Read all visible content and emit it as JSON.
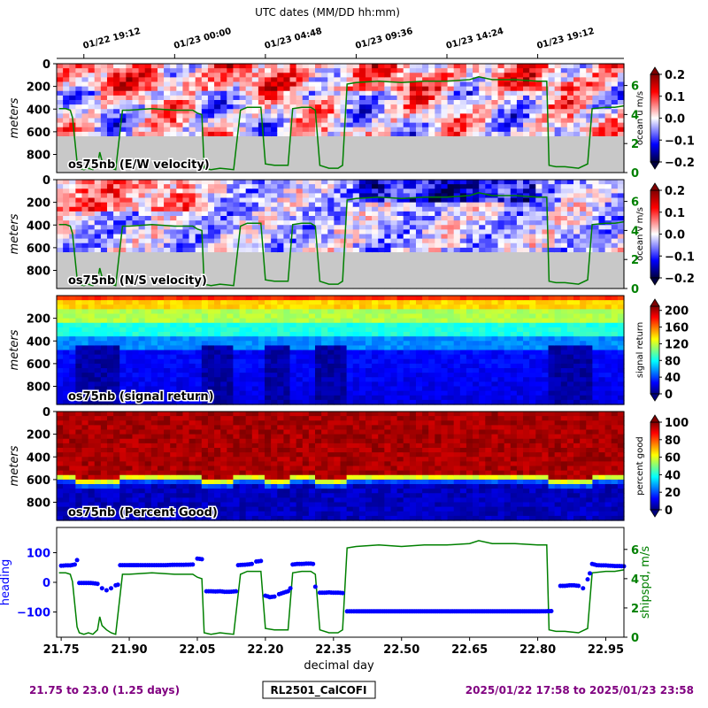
{
  "top_axis": {
    "title": "UTC dates (MM/DD hh:mm)",
    "ticks": [
      {
        "dday": 21.8,
        "label": "01/22 19:12"
      },
      {
        "dday": 22.0,
        "label": "01/23 00:00"
      },
      {
        "dday": 22.2,
        "label": "01/23 04:48"
      },
      {
        "dday": 22.4,
        "label": "01/23 09:36"
      },
      {
        "dday": 22.6,
        "label": "01/23 14:24"
      },
      {
        "dday": 22.8,
        "label": "01/23 19:12"
      }
    ]
  },
  "bottom_axis": {
    "label": "decimal day",
    "ticks": [
      "21.75",
      "21.90",
      "22.05",
      "22.20",
      "22.35",
      "22.50",
      "22.65",
      "22.80",
      "22.95"
    ]
  },
  "footer": {
    "range_text": "21.75 to 23.0 (1.25 days)",
    "cruise": "RL2501_CalCOFI",
    "time_text": "2025/01/22 17:58 to 2025/01/23 23:58",
    "color": "#800080"
  },
  "chart_data": [
    {
      "type": "heatmap",
      "title": "os75nb (E/W velocity)",
      "ylabel": "meters",
      "yticks": [
        "0",
        "200",
        "400",
        "600",
        "800"
      ],
      "ylim": [
        960,
        0
      ],
      "xlim": [
        21.74,
        22.99
      ],
      "colorbar": {
        "label": "ocean u m/s",
        "ticks": [
          "0.2",
          "0.1",
          "0.0",
          "−0.1",
          "−0.2"
        ],
        "range": [
          -0.2,
          0.2
        ],
        "colormap": "seismic"
      },
      "overlay": {
        "name": "shipspd",
        "color": "#008000",
        "axis_ticks": [
          "6",
          "4",
          "2",
          "0"
        ],
        "ylim": [
          0,
          7.5
        ]
      },
      "no_data_below_m": 620
    },
    {
      "type": "heatmap",
      "title": "os75nb (N/S velocity)",
      "ylabel": "meters",
      "yticks": [
        "0",
        "200",
        "400",
        "600",
        "800"
      ],
      "ylim": [
        960,
        0
      ],
      "xlim": [
        21.74,
        22.99
      ],
      "colorbar": {
        "label": "ocean v m/s",
        "ticks": [
          "0.2",
          "0.1",
          "0.0",
          "−0.1",
          "−0.2"
        ],
        "range": [
          -0.2,
          0.2
        ],
        "colormap": "seismic"
      },
      "overlay": {
        "name": "shipspd",
        "color": "#008000",
        "axis_ticks": [
          "6",
          "4",
          "2",
          "0"
        ],
        "ylim": [
          0,
          7.5
        ]
      },
      "no_data_below_m": 620
    },
    {
      "type": "heatmap",
      "title": "os75nb (signal return)",
      "ylabel": "meters",
      "yticks": [
        "200",
        "400",
        "600",
        "800"
      ],
      "ylim": [
        960,
        0
      ],
      "xlim": [
        21.74,
        22.99
      ],
      "colorbar": {
        "label": "signal return",
        "ticks": [
          "200",
          "160",
          "120",
          "80",
          "40",
          "0"
        ],
        "range": [
          0,
          210
        ],
        "colormap": "jet"
      }
    },
    {
      "type": "heatmap",
      "title": "os75nb (Percent Good)",
      "ylabel": "meters",
      "yticks": [
        "0",
        "200",
        "400",
        "600",
        "800"
      ],
      "ylim": [
        960,
        0
      ],
      "xlim": [
        21.74,
        22.99
      ],
      "colorbar": {
        "label": "percent good",
        "ticks": [
          "100",
          "80",
          "60",
          "40",
          "20",
          "0"
        ],
        "range": [
          0,
          100
        ],
        "colormap": "jet"
      }
    },
    {
      "type": "scatter",
      "xlabel": "decimal day",
      "xlim": [
        21.74,
        22.99
      ],
      "series": [
        {
          "name": "heading",
          "color": "#0000ff",
          "axis_ticks": [
            "100",
            "0",
            "−100"
          ],
          "ylim": [
            -185,
            185
          ],
          "points": [
            [
              21.75,
              56
            ],
            [
              21.76,
              57
            ],
            [
              21.77,
              57
            ],
            [
              21.78,
              60
            ],
            [
              21.785,
              75
            ],
            [
              21.79,
              -2
            ],
            [
              21.8,
              -2
            ],
            [
              21.81,
              -2
            ],
            [
              21.82,
              -3
            ],
            [
              21.83,
              -5
            ],
            [
              21.84,
              -20
            ],
            [
              21.85,
              -27
            ],
            [
              21.86,
              -20
            ],
            [
              21.87,
              -10
            ],
            [
              21.875,
              -8
            ],
            [
              21.88,
              58
            ],
            [
              21.9,
              58
            ],
            [
              21.92,
              58
            ],
            [
              21.94,
              58
            ],
            [
              21.96,
              58
            ],
            [
              21.98,
              58
            ],
            [
              22.0,
              59
            ],
            [
              22.02,
              59
            ],
            [
              22.04,
              60
            ],
            [
              22.05,
              80
            ],
            [
              22.06,
              78
            ],
            [
              22.07,
              -30
            ],
            [
              22.08,
              -30
            ],
            [
              22.09,
              -31
            ],
            [
              22.1,
              -30
            ],
            [
              22.11,
              -32
            ],
            [
              22.12,
              -32
            ],
            [
              22.13,
              -31
            ],
            [
              22.135,
              -30
            ],
            [
              22.14,
              58
            ],
            [
              22.15,
              59
            ],
            [
              22.16,
              60
            ],
            [
              22.17,
              62
            ],
            [
              22.18,
              70
            ],
            [
              22.19,
              72
            ],
            [
              22.2,
              -45
            ],
            [
              22.21,
              -50
            ],
            [
              22.22,
              -48
            ],
            [
              22.23,
              -40
            ],
            [
              22.24,
              -35
            ],
            [
              22.25,
              -30
            ],
            [
              22.255,
              -20
            ],
            [
              22.26,
              60
            ],
            [
              22.27,
              62
            ],
            [
              22.28,
              62
            ],
            [
              22.29,
              63
            ],
            [
              22.3,
              63
            ],
            [
              22.305,
              62
            ],
            [
              22.31,
              -15
            ],
            [
              22.32,
              -35
            ],
            [
              22.33,
              -35
            ],
            [
              22.34,
              -34
            ],
            [
              22.35,
              -35
            ],
            [
              22.36,
              -35
            ],
            [
              22.37,
              -36
            ],
            [
              22.38,
              -98
            ],
            [
              22.4,
              -98
            ],
            [
              22.45,
              -98
            ],
            [
              22.5,
              -98
            ],
            [
              22.55,
              -98
            ],
            [
              22.6,
              -98
            ],
            [
              22.65,
              -98
            ],
            [
              22.7,
              -98
            ],
            [
              22.75,
              -98
            ],
            [
              22.8,
              -98
            ],
            [
              22.83,
              -97
            ],
            [
              22.85,
              -12
            ],
            [
              22.86,
              -12
            ],
            [
              22.87,
              -10
            ],
            [
              22.88,
              -10
            ],
            [
              22.89,
              -12
            ],
            [
              22.9,
              -20
            ],
            [
              22.91,
              10
            ],
            [
              22.915,
              30
            ],
            [
              22.92,
              62
            ],
            [
              22.93,
              58
            ],
            [
              22.94,
              57
            ],
            [
              22.95,
              57
            ],
            [
              22.96,
              56
            ],
            [
              22.97,
              55
            ],
            [
              22.98,
              55
            ],
            [
              22.99,
              54
            ]
          ]
        },
        {
          "name": "shipspd, m/s",
          "color": "#008000",
          "axis_ticks": [
            "6",
            "4",
            "2",
            "0"
          ],
          "ylim": [
            0,
            7.5
          ],
          "points": [
            [
              21.745,
              4.4
            ],
            [
              21.76,
              4.4
            ],
            [
              21.77,
              4.3
            ],
            [
              21.775,
              3.8
            ],
            [
              21.785,
              0.7
            ],
            [
              21.79,
              0.3
            ],
            [
              21.8,
              0.2
            ],
            [
              21.81,
              0.3
            ],
            [
              21.82,
              0.2
            ],
            [
              21.83,
              0.5
            ],
            [
              21.835,
              1.4
            ],
            [
              21.84,
              0.8
            ],
            [
              21.85,
              0.5
            ],
            [
              21.86,
              0.3
            ],
            [
              21.87,
              0.2
            ],
            [
              21.885,
              4.3
            ],
            [
              21.9,
              4.3
            ],
            [
              21.95,
              4.4
            ],
            [
              22.0,
              4.3
            ],
            [
              22.04,
              4.3
            ],
            [
              22.05,
              4.1
            ],
            [
              22.06,
              4.0
            ],
            [
              22.065,
              0.3
            ],
            [
              22.08,
              0.2
            ],
            [
              22.1,
              0.3
            ],
            [
              22.13,
              0.2
            ],
            [
              22.145,
              4.3
            ],
            [
              22.16,
              4.5
            ],
            [
              22.19,
              4.5
            ],
            [
              22.2,
              0.6
            ],
            [
              22.22,
              0.5
            ],
            [
              22.25,
              0.5
            ],
            [
              22.26,
              4.4
            ],
            [
              22.28,
              4.5
            ],
            [
              22.3,
              4.5
            ],
            [
              22.31,
              4.3
            ],
            [
              22.32,
              0.5
            ],
            [
              22.34,
              0.3
            ],
            [
              22.36,
              0.3
            ],
            [
              22.37,
              0.5
            ],
            [
              22.38,
              6.1
            ],
            [
              22.4,
              6.2
            ],
            [
              22.45,
              6.3
            ],
            [
              22.5,
              6.2
            ],
            [
              22.55,
              6.3
            ],
            [
              22.6,
              6.3
            ],
            [
              22.65,
              6.4
            ],
            [
              22.67,
              6.6
            ],
            [
              22.7,
              6.4
            ],
            [
              22.75,
              6.4
            ],
            [
              22.8,
              6.3
            ],
            [
              22.82,
              6.3
            ],
            [
              22.825,
              0.5
            ],
            [
              22.84,
              0.4
            ],
            [
              22.86,
              0.4
            ],
            [
              22.89,
              0.3
            ],
            [
              22.91,
              0.6
            ],
            [
              22.92,
              4.4
            ],
            [
              22.95,
              4.5
            ],
            [
              22.97,
              4.5
            ],
            [
              22.99,
              4.6
            ]
          ]
        }
      ]
    }
  ]
}
